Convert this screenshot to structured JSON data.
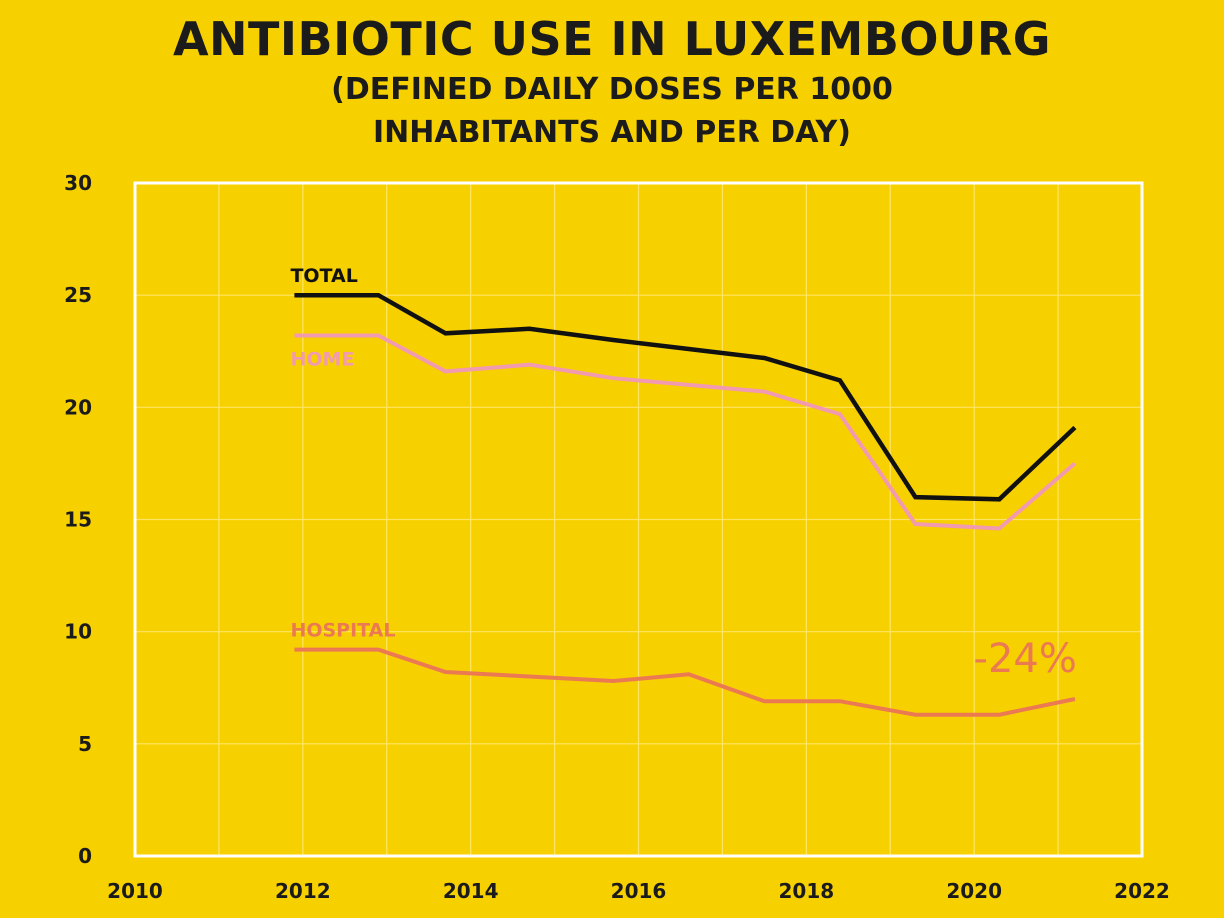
{
  "chart_data": {
    "type": "line",
    "title": "ANTIBIOTIC USE IN LUXEMBOURG",
    "subtitle_line1": "(DEFINED DAILY DOSES PER 1000",
    "subtitle_line2": "INHABITANTS AND PER DAY)",
    "xlim": [
      2010,
      2022
    ],
    "ylim": [
      0,
      30
    ],
    "x_ticks": [
      "2010",
      "2012",
      "2014",
      "2016",
      "2018",
      "2020",
      "2022"
    ],
    "y_ticks": [
      "0",
      "5",
      "10",
      "15",
      "20",
      "25",
      "30"
    ],
    "grid": true,
    "series": [
      {
        "name": "TOTAL",
        "color": "#111111",
        "x": [
          2011.9,
          2012.9,
          2013.7,
          2014.7,
          2015.7,
          2016.6,
          2017.5,
          2018.4,
          2019.3,
          2020.3,
          2021.2
        ],
        "values": [
          25.0,
          25.0,
          23.3,
          23.5,
          23.0,
          22.6,
          22.2,
          21.2,
          16.0,
          15.9,
          19.1
        ]
      },
      {
        "name": "HOME",
        "color": "#f29ab0",
        "x": [
          2011.9,
          2012.9,
          2013.7,
          2014.7,
          2015.7,
          2016.6,
          2017.5,
          2018.4,
          2019.3,
          2020.3,
          2021.2
        ],
        "values": [
          23.2,
          23.2,
          21.6,
          21.9,
          21.3,
          21.0,
          20.7,
          19.7,
          14.8,
          14.6,
          17.5
        ]
      },
      {
        "name": "HOSPITAL",
        "color": "#eb7a52",
        "x": [
          2011.9,
          2012.9,
          2013.7,
          2014.7,
          2015.7,
          2016.6,
          2017.5,
          2018.4,
          2019.3,
          2020.3,
          2021.2
        ],
        "values": [
          9.2,
          9.2,
          8.2,
          8.0,
          7.8,
          8.1,
          6.9,
          6.9,
          6.3,
          6.3,
          7.0
        ]
      }
    ],
    "annotation": "-24%",
    "annotation_color": "#eb7a52"
  }
}
